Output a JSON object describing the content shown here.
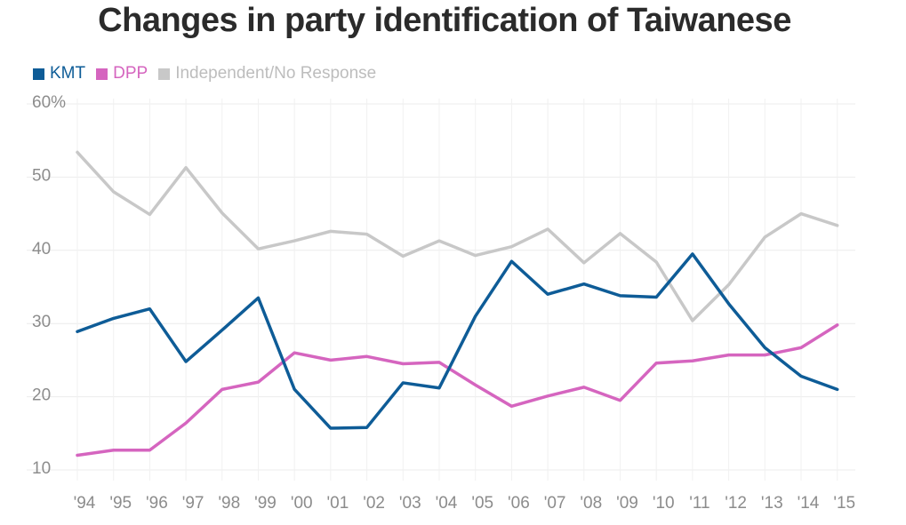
{
  "chart_data": {
    "type": "line",
    "title": "Changes in party identification of Taiwanese",
    "categories": [
      "'94",
      "'95",
      "'96",
      "'97",
      "'98",
      "'99",
      "'00",
      "'01",
      "'02",
      "'03",
      "'04",
      "'05",
      "'06",
      "'07",
      "'08",
      "'09",
      "'10",
      "'11",
      "'12",
      "'13",
      "'14",
      "'15"
    ],
    "y_ticks": [
      "60%",
      "50",
      "40",
      "30",
      "20",
      "10"
    ],
    "y_tick_values": [
      60,
      50,
      40,
      30,
      20,
      10
    ],
    "ylim": [
      10,
      60
    ],
    "grid": true,
    "legend_position": "top-left",
    "series": [
      {
        "name": "KMT",
        "color": "#0e5c97",
        "values": [
          28.9,
          30.7,
          32.0,
          24.8,
          29.1,
          33.5,
          21.0,
          15.7,
          15.8,
          21.9,
          21.2,
          31.0,
          38.5,
          34.0,
          35.4,
          33.8,
          33.6,
          39.5,
          32.7,
          26.7,
          22.8,
          21.0
        ]
      },
      {
        "name": "DPP",
        "color": "#d565bf",
        "values": [
          12.0,
          12.7,
          12.7,
          16.4,
          21.0,
          22.0,
          26.0,
          25.0,
          25.5,
          24.5,
          24.7,
          21.6,
          18.7,
          20.1,
          21.3,
          19.5,
          24.6,
          24.9,
          25.7,
          25.7,
          26.7,
          29.8
        ]
      },
      {
        "name": "Independent/No Response",
        "color": "#c8c8c8",
        "values": [
          53.4,
          48.0,
          44.9,
          51.3,
          45.1,
          40.2,
          41.3,
          42.6,
          42.2,
          39.2,
          41.3,
          39.3,
          40.5,
          42.9,
          38.3,
          42.3,
          38.4,
          30.4,
          35.3,
          41.8,
          45.0,
          43.4
        ]
      }
    ]
  }
}
